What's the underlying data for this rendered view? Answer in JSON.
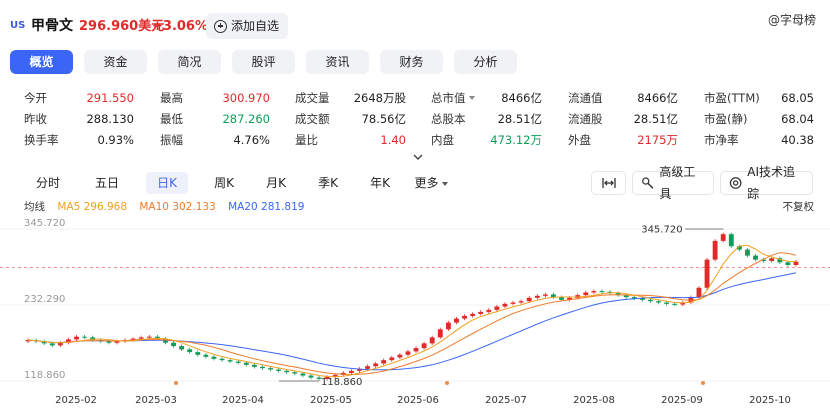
{
  "header": {
    "market": "US",
    "name": "甲骨文",
    "price": "296.960美元",
    "change": "+3.06%",
    "watch_label": "添加自选",
    "brand": "@字母榜",
    "colors": {
      "up": "#e02a2a",
      "down": "#0d9d58",
      "accent": "#3b66f5"
    }
  },
  "tabs": [
    {
      "label": "概览",
      "active": true
    },
    {
      "label": "资金",
      "active": false
    },
    {
      "label": "简况",
      "active": false
    },
    {
      "label": "股评",
      "active": false
    },
    {
      "label": "资讯",
      "active": false
    },
    {
      "label": "财务",
      "active": false
    },
    {
      "label": "分析",
      "active": false
    }
  ],
  "stats": {
    "rows": [
      [
        {
          "label": "今开",
          "value": "291.550",
          "tone": "up"
        },
        {
          "label": "最高",
          "value": "300.970",
          "tone": "up"
        },
        {
          "label": "成交量",
          "value": "2648万股",
          "tone": ""
        },
        {
          "label": "总市值",
          "value": "8466亿",
          "tone": "",
          "dropdown": true
        },
        {
          "label": "流通值",
          "value": "8466亿",
          "tone": ""
        },
        {
          "label": "市盈(TTM)",
          "value": "68.05",
          "tone": ""
        }
      ],
      [
        {
          "label": "昨收",
          "value": "288.130",
          "tone": ""
        },
        {
          "label": "最低",
          "value": "287.260",
          "tone": "down"
        },
        {
          "label": "成交额",
          "value": "78.56亿",
          "tone": ""
        },
        {
          "label": "总股本",
          "value": "28.51亿",
          "tone": ""
        },
        {
          "label": "流通股",
          "value": "28.51亿",
          "tone": ""
        },
        {
          "label": "市盈(静)",
          "value": "68.04",
          "tone": ""
        }
      ],
      [
        {
          "label": "换手率",
          "value": "0.93%",
          "tone": ""
        },
        {
          "label": "振幅",
          "value": "4.76%",
          "tone": ""
        },
        {
          "label": "量比",
          "value": "1.40",
          "tone": "up"
        },
        {
          "label": "内盘",
          "value": "473.12万",
          "tone": "down"
        },
        {
          "label": "外盘",
          "value": "2175万",
          "tone": "up"
        },
        {
          "label": "市净率",
          "value": "40.38",
          "tone": ""
        }
      ]
    ]
  },
  "periods": {
    "items": [
      "分时",
      "五日",
      "日K",
      "周K",
      "月K",
      "季K",
      "年K",
      "更多"
    ],
    "active": "日K"
  },
  "tools": {
    "fit_icon": "fit-width-icon",
    "advanced": "高级工具",
    "ai": "AI技术追踪"
  },
  "indicators": {
    "name": "均线",
    "ma5": "MA5 296.968",
    "ma10": "MA10 302.133",
    "ma20": "MA20 281.819",
    "adjust": "不复权",
    "colors": {
      "ma5": "#f0a020",
      "ma10": "#f07a2a",
      "ma20": "#3b66f5"
    }
  },
  "chart_data": {
    "type": "candlestick",
    "y_ticks": [
      "345.720",
      "232.290",
      "118.860"
    ],
    "x_ticks": [
      "2025-02",
      "2025-03",
      "2025-04",
      "2025-05",
      "2025-06",
      "2025-07",
      "2025-08",
      "2025-09",
      "2025-10"
    ],
    "max_label": "345.720",
    "min_label": "118.860",
    "reference_price": 288.13,
    "ylim": [
      118.86,
      345.72
    ],
    "close": [
      180,
      178,
      175,
      172,
      176,
      181,
      185,
      184,
      180,
      178,
      176,
      178,
      180,
      182,
      184,
      185,
      182,
      176,
      171,
      166,
      162,
      158,
      155,
      152,
      150,
      148,
      146,
      143,
      140,
      138,
      136,
      134,
      132,
      130,
      127,
      124,
      122,
      125,
      128,
      131,
      134,
      137,
      141,
      145,
      150,
      154,
      158,
      163,
      168,
      175,
      184,
      196,
      206,
      212,
      216,
      219,
      222,
      225,
      230,
      234,
      236,
      238,
      243,
      246,
      248,
      244,
      240,
      243,
      247,
      251,
      253,
      252,
      250,
      247,
      244,
      242,
      240,
      238,
      236,
      234,
      233,
      236,
      244,
      258,
      300,
      328,
      338,
      320,
      315,
      306,
      300,
      298,
      302,
      296,
      292,
      296.96
    ]
  }
}
